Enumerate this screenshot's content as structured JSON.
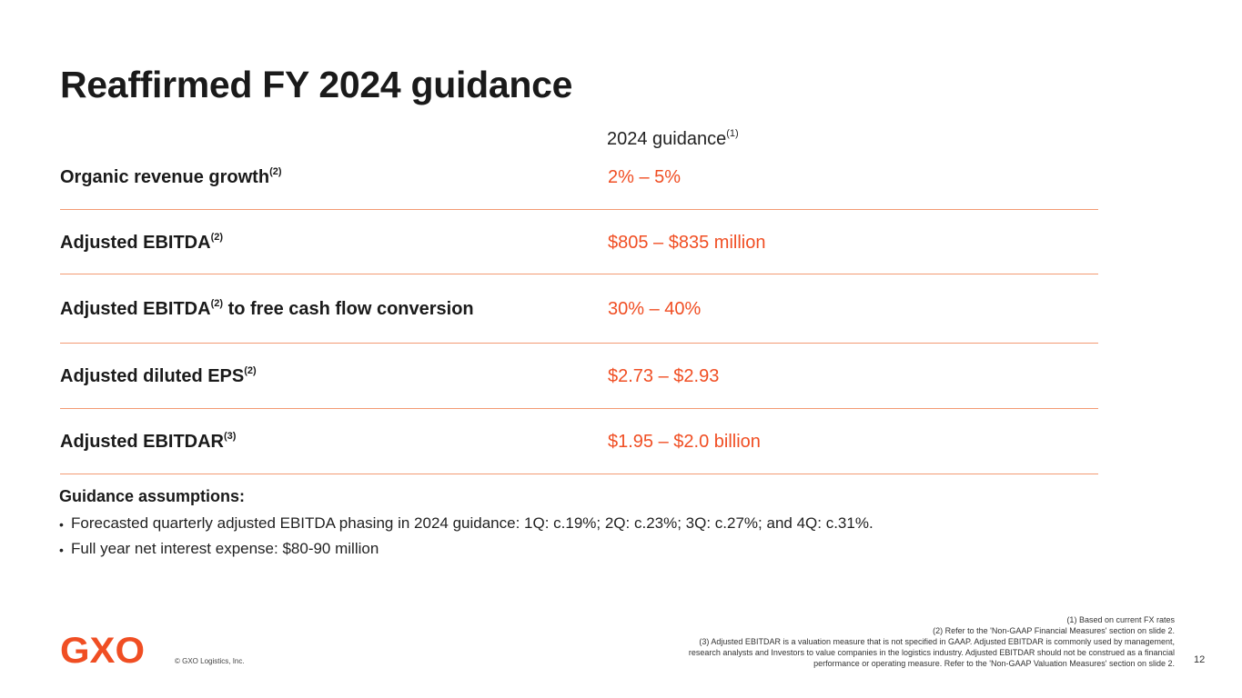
{
  "title": "Reaffirmed FY 2024 guidance",
  "column_header": {
    "text": "2024 guidance",
    "note": "(1)"
  },
  "rows": [
    {
      "label": "Organic revenue growth",
      "note": "(2)",
      "suffix": "",
      "value": "2% – 5%"
    },
    {
      "label": "Adjusted EBITDA",
      "note": "(2)",
      "suffix": "",
      "value": "$805 – $835 million"
    },
    {
      "label": "Adjusted EBITDA",
      "note": "(2)",
      "suffix": " to free cash flow conversion",
      "value": "30% – 40%"
    },
    {
      "label": "Adjusted diluted EPS",
      "note": "(2)",
      "suffix": "",
      "value": "$2.73 – $2.93"
    },
    {
      "label": "Adjusted EBITDAR",
      "note": "(3)",
      "suffix": "",
      "value": "$1.95 – $2.0 billion"
    }
  ],
  "assumptions": {
    "title": "Guidance assumptions:",
    "bullets": [
      "Forecasted quarterly adjusted EBITDA phasing in 2024 guidance: 1Q: c.19%; 2Q: c.23%; 3Q: c.27%; and 4Q: c.31%.",
      "Full year net interest expense: $80-90 million"
    ]
  },
  "footer": {
    "logo_text": "GXO",
    "copyright": "© GXO Logistics, Inc.",
    "page_number": "12",
    "footnotes": [
      "(1) Based on current FX rates",
      "(2) Refer to the 'Non-GAAP Financial Measures' section on slide 2.",
      "(3) Adjusted EBITDAR is a valuation measure that is not specified in GAAP. Adjusted EBITDAR is commonly used by management,",
      "research analysts and Investors to value companies in the logistics industry. Adjusted EBITDAR should not be construed as a financial",
      "performance or operating measure. Refer to the 'Non-GAAP Valuation Measures' section on slide 2."
    ]
  },
  "colors": {
    "accent": "#f04e23",
    "divider": "#f39a73",
    "text": "#1a1a1a"
  }
}
